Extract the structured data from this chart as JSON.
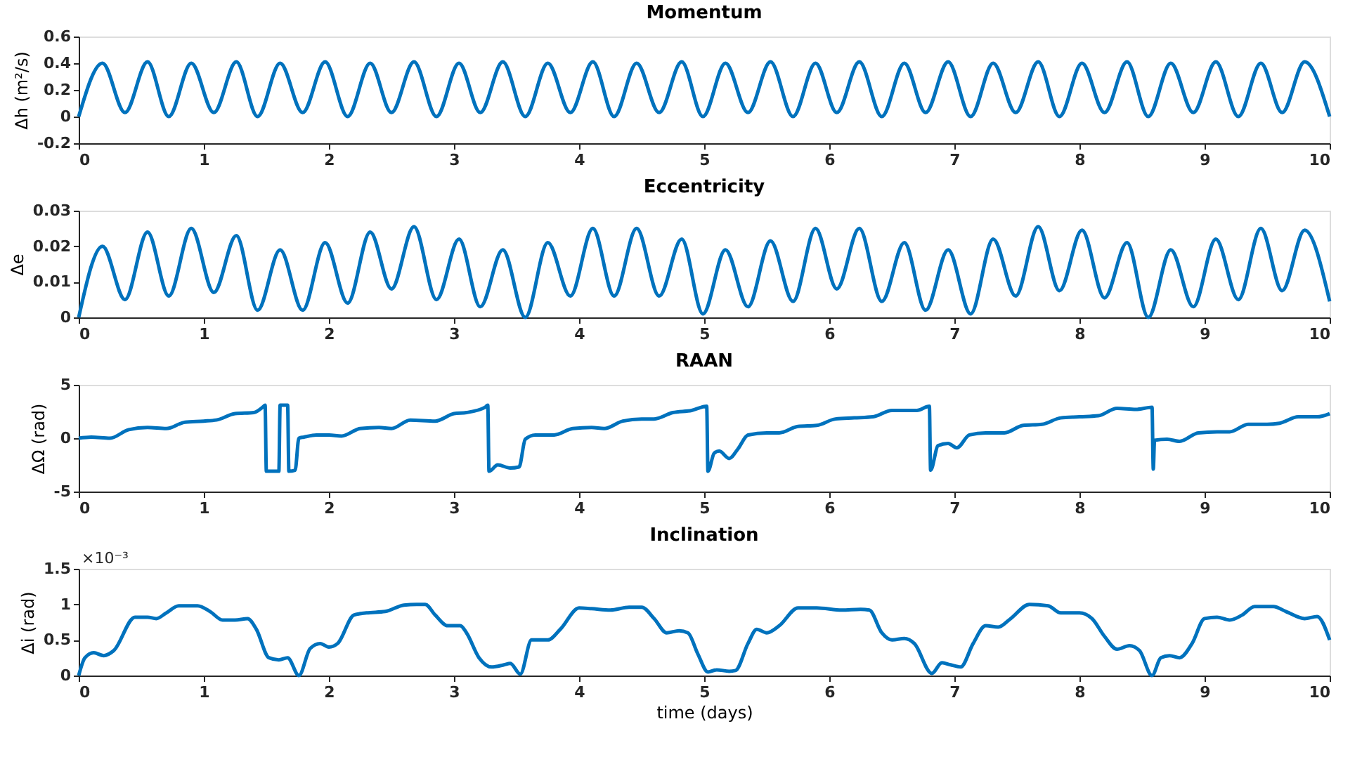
{
  "chart_data": [
    {
      "type": "line",
      "title": "Momentum",
      "ylabel": "Δh (m²/s)",
      "xlim": [
        0,
        10
      ],
      "xticks": [
        0,
        1,
        2,
        3,
        4,
        5,
        6,
        7,
        8,
        9,
        10
      ],
      "ylim": [
        -0.2,
        0.6
      ],
      "yticks": [
        -0.2,
        0,
        0.2,
        0.4,
        0.6
      ],
      "grid": false,
      "x": [
        0,
        0.19,
        0.37,
        0.55,
        0.72,
        0.9,
        1.08,
        1.26,
        1.43,
        1.61,
        1.79,
        1.97,
        2.15,
        2.33,
        2.5,
        2.68,
        2.86,
        3.04,
        3.21,
        3.39,
        3.57,
        3.75,
        3.93,
        4.11,
        4.28,
        4.46,
        4.64,
        4.82,
        4.99,
        5.17,
        5.35,
        5.53,
        5.71,
        5.89,
        6.06,
        6.24,
        6.42,
        6.6,
        6.77,
        6.95,
        7.13,
        7.31,
        7.49,
        7.67,
        7.84,
        8.02,
        8.2,
        8.38,
        8.55,
        8.73,
        8.91,
        9.09,
        9.27,
        9.45,
        9.62,
        9.8,
        10
      ],
      "series": [
        {
          "color": "#0072bd",
          "values": [
            0,
            0.4,
            0.03,
            0.41,
            0,
            0.4,
            0.03,
            0.41,
            0,
            0.4,
            0.03,
            0.41,
            0,
            0.4,
            0.03,
            0.41,
            0,
            0.4,
            0.03,
            0.41,
            0,
            0.4,
            0.03,
            0.41,
            0,
            0.4,
            0.03,
            0.41,
            0,
            0.4,
            0.03,
            0.41,
            0,
            0.4,
            0.03,
            0.41,
            0,
            0.4,
            0.03,
            0.41,
            0,
            0.4,
            0.03,
            0.41,
            0,
            0.4,
            0.03,
            0.41,
            0,
            0.4,
            0.03,
            0.41,
            0,
            0.4,
            0.03,
            0.41,
            0
          ]
        }
      ]
    },
    {
      "type": "line",
      "title": "Eccentricity",
      "ylabel": "Δe",
      "xlim": [
        0,
        10
      ],
      "xticks": [
        0,
        1,
        2,
        3,
        4,
        5,
        6,
        7,
        8,
        9,
        10
      ],
      "ylim": [
        0,
        0.03
      ],
      "yticks": [
        0,
        0.01,
        0.02,
        0.03
      ],
      "grid": false,
      "x": [
        0,
        0.19,
        0.37,
        0.55,
        0.72,
        0.9,
        1.08,
        1.26,
        1.43,
        1.61,
        1.79,
        1.97,
        2.15,
        2.33,
        2.5,
        2.68,
        2.86,
        3.04,
        3.21,
        3.39,
        3.57,
        3.75,
        3.93,
        4.11,
        4.28,
        4.46,
        4.64,
        4.82,
        4.99,
        5.17,
        5.35,
        5.53,
        5.71,
        5.89,
        6.06,
        6.24,
        6.42,
        6.6,
        6.77,
        6.95,
        7.13,
        7.31,
        7.49,
        7.67,
        7.84,
        8.02,
        8.2,
        8.38,
        8.55,
        8.73,
        8.91,
        9.09,
        9.27,
        9.45,
        9.62,
        9.8,
        10
      ],
      "series": [
        {
          "color": "#0072bd",
          "values": [
            0,
            0.02,
            0.005,
            0.024,
            0.006,
            0.025,
            0.007,
            0.023,
            0.002,
            0.019,
            0.002,
            0.021,
            0.004,
            0.024,
            0.008,
            0.0255,
            0.005,
            0.022,
            0.003,
            0.019,
            0,
            0.021,
            0.006,
            0.025,
            0.006,
            0.025,
            0.006,
            0.022,
            0.001,
            0.019,
            0.003,
            0.0215,
            0.0045,
            0.025,
            0.008,
            0.025,
            0.0045,
            0.021,
            0.002,
            0.019,
            0.001,
            0.022,
            0.006,
            0.0255,
            0.0075,
            0.0245,
            0.0055,
            0.021,
            0,
            0.019,
            0.003,
            0.022,
            0.005,
            0.025,
            0.0075,
            0.0245,
            0.0045
          ]
        }
      ]
    },
    {
      "type": "line",
      "title": "RAAN",
      "ylabel": "ΔΩ (rad)",
      "xlim": [
        0,
        10
      ],
      "xticks": [
        0,
        1,
        2,
        3,
        4,
        5,
        6,
        7,
        8,
        9,
        10
      ],
      "ylim": [
        -5,
        5
      ],
      "yticks": [
        -5,
        0,
        5
      ],
      "grid": false,
      "x": [
        0,
        0.1,
        0.25,
        0.4,
        0.55,
        0.7,
        0.85,
        1.0,
        1.1,
        1.25,
        1.4,
        1.48,
        1.49,
        1.5,
        1.6,
        1.61,
        1.67,
        1.68,
        1.73,
        1.76,
        1.8,
        1.9,
        2.0,
        2.1,
        2.25,
        2.4,
        2.5,
        2.65,
        2.85,
        3.0,
        3.1,
        3.25,
        3.27,
        3.28,
        3.35,
        3.45,
        3.52,
        3.57,
        3.65,
        3.8,
        3.95,
        4.1,
        4.2,
        4.35,
        4.5,
        4.6,
        4.75,
        4.9,
        5.02,
        5.03,
        5.08,
        5.12,
        5.2,
        5.27,
        5.35,
        5.5,
        5.6,
        5.75,
        5.9,
        6.05,
        6.2,
        6.35,
        6.5,
        6.7,
        6.8,
        6.81,
        6.87,
        6.95,
        7.02,
        7.12,
        7.25,
        7.4,
        7.55,
        7.7,
        7.85,
        8.0,
        8.15,
        8.3,
        8.45,
        8.58,
        8.59,
        8.6,
        8.7,
        8.8,
        8.95,
        9.1,
        9.2,
        9.35,
        9.5,
        9.6,
        9.75,
        9.9,
        10
      ],
      "series": [
        {
          "color": "#0072bd",
          "values": [
            0,
            0.1,
            0.0,
            0.8,
            1.0,
            0.9,
            1.5,
            1.6,
            1.7,
            2.3,
            2.4,
            3.0,
            3.1,
            -3.1,
            -3.1,
            3.1,
            3.1,
            -3.1,
            -3.0,
            0.0,
            0.1,
            0.3,
            0.3,
            0.2,
            0.9,
            1.0,
            0.9,
            1.7,
            1.6,
            2.3,
            2.4,
            2.9,
            3.1,
            -3.1,
            -2.5,
            -2.8,
            -2.7,
            -0.1,
            0.3,
            0.3,
            0.9,
            1.0,
            0.9,
            1.6,
            1.8,
            1.8,
            2.4,
            2.6,
            3.0,
            -3.1,
            -1.4,
            -1.2,
            -1.9,
            -1.0,
            0.3,
            0.5,
            0.5,
            1.1,
            1.2,
            1.8,
            1.9,
            2.0,
            2.6,
            2.6,
            3.0,
            -3.0,
            -0.7,
            -0.5,
            -0.9,
            0.3,
            0.5,
            0.5,
            1.2,
            1.3,
            1.9,
            2.0,
            2.1,
            2.8,
            2.7,
            2.9,
            -2.9,
            -0.2,
            -0.1,
            -0.3,
            0.5,
            0.6,
            0.6,
            1.3,
            1.3,
            1.4,
            2.0,
            2.0,
            2.3
          ]
        }
      ]
    },
    {
      "type": "line",
      "title": "Inclination",
      "ylabel": "Δi (rad)",
      "xlabel": "time (days)",
      "annotations": [
        "×10⁻³"
      ],
      "xlim": [
        0,
        10
      ],
      "xticks": [
        0,
        1,
        2,
        3,
        4,
        5,
        6,
        7,
        8,
        9,
        10
      ],
      "ylim": [
        0,
        1.5
      ],
      "yticks": [
        0,
        0.5,
        1,
        1.5
      ],
      "grid": false,
      "x": [
        0,
        0.05,
        0.12,
        0.2,
        0.28,
        0.45,
        0.55,
        0.62,
        0.7,
        0.8,
        0.95,
        1.05,
        1.15,
        1.25,
        1.35,
        1.42,
        1.52,
        1.6,
        1.67,
        1.76,
        1.85,
        1.93,
        2.0,
        2.07,
        2.2,
        2.3,
        2.45,
        2.6,
        2.7,
        2.77,
        2.85,
        2.95,
        3.05,
        3.1,
        3.2,
        3.3,
        3.4,
        3.45,
        3.53,
        3.62,
        3.75,
        3.85,
        4.0,
        4.1,
        4.25,
        4.4,
        4.5,
        4.6,
        4.7,
        4.8,
        4.87,
        4.95,
        5.03,
        5.1,
        5.2,
        5.25,
        5.35,
        5.42,
        5.5,
        5.6,
        5.75,
        5.9,
        6.1,
        6.25,
        6.32,
        6.42,
        6.5,
        6.6,
        6.68,
        6.82,
        6.9,
        6.97,
        7.05,
        7.15,
        7.25,
        7.35,
        7.45,
        7.6,
        7.75,
        7.85,
        8.0,
        8.1,
        8.2,
        8.3,
        8.4,
        8.48,
        8.58,
        8.65,
        8.72,
        8.8,
        8.9,
        9.0,
        9.1,
        9.2,
        9.3,
        9.4,
        9.55,
        9.65,
        9.8,
        9.9,
        10
      ],
      "series": [
        {
          "color": "#0072bd",
          "values": [
            0,
            0.25,
            0.32,
            0.28,
            0.35,
            0.82,
            0.82,
            0.8,
            0.88,
            0.98,
            0.98,
            0.9,
            0.78,
            0.78,
            0.8,
            0.65,
            0.25,
            0.22,
            0.25,
            0.0,
            0.38,
            0.45,
            0.4,
            0.45,
            0.85,
            0.88,
            0.9,
            0.99,
            1.0,
            1.0,
            0.85,
            0.7,
            0.7,
            0.6,
            0.25,
            0.12,
            0.15,
            0.17,
            0.02,
            0.5,
            0.5,
            0.65,
            0.95,
            0.94,
            0.92,
            0.96,
            0.96,
            0.8,
            0.6,
            0.63,
            0.6,
            0.3,
            0.05,
            0.08,
            0.06,
            0.07,
            0.45,
            0.65,
            0.6,
            0.7,
            0.95,
            0.95,
            0.92,
            0.93,
            0.92,
            0.6,
            0.5,
            0.52,
            0.45,
            0.03,
            0.18,
            0.15,
            0.12,
            0.45,
            0.7,
            0.68,
            0.8,
            1.0,
            0.98,
            0.88,
            0.88,
            0.8,
            0.55,
            0.37,
            0.42,
            0.35,
            0.0,
            0.25,
            0.28,
            0.25,
            0.45,
            0.8,
            0.82,
            0.78,
            0.85,
            0.97,
            0.97,
            0.9,
            0.8,
            0.83,
            0.5
          ]
        }
      ]
    }
  ]
}
